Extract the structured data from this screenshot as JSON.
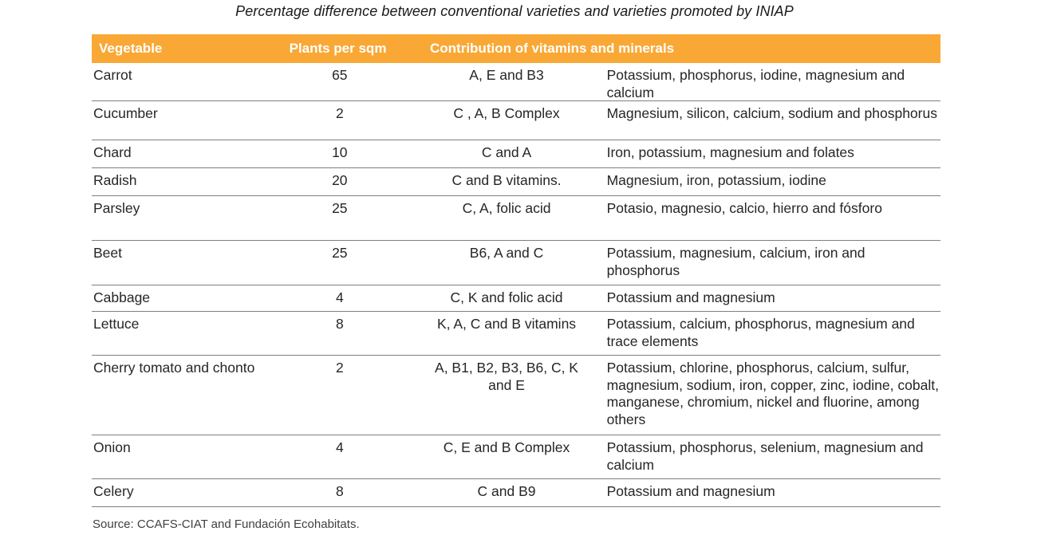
{
  "subtitle": "Percentage difference between conventional varieties and varieties promoted by INIAP",
  "table": {
    "headers": [
      "Vegetable",
      "Plants per sqm",
      "Contribution of vitamins  and minerals"
    ],
    "rows": [
      {
        "vegetable": "Carrot",
        "plants": "65",
        "vitamins": "A, E and B3",
        "minerals": "Potassium, phosphorus,  iodine, magnesium and calcium"
      },
      {
        "vegetable": "Cucumber",
        "plants": "2",
        "vitamins": "C , A, B Complex",
        "minerals": "Magnesium, silicon, calcium, sodium and phosphorus"
      },
      {
        "vegetable": "Chard",
        "plants": "10",
        "vitamins": "C and A",
        "minerals": "Iron, potassium,  magnesium and folates"
      },
      {
        "vegetable": "Radish",
        "plants": "20",
        "vitamins": "C and B vitamins.",
        "minerals": "Magnesium, iron, potassium,  iodine"
      },
      {
        "vegetable": "Parsley",
        "plants": "25",
        "vitamins": "C, A, folic acid",
        "minerals": "Potasio, magnesio, calcio, hierro and fósforo"
      },
      {
        "vegetable": "Beet",
        "plants": "25",
        "vitamins": "B6, A and C",
        "minerals": "Potassium, magnesium, calcium, iron and phosphorus"
      },
      {
        "vegetable": "Cabbage",
        "plants": "4",
        "vitamins": "C, K and folic acid",
        "minerals": "Potassium and magnesium"
      },
      {
        "vegetable": "Lettuce",
        "plants": "8",
        "vitamins": "K, A, C and B vitamins",
        "minerals": "Potassium, calcium, phosphorus,  magnesium and trace elements"
      },
      {
        "vegetable": "Cherry tomato and chonto",
        "plants": "2",
        "vitamins": "A, B1, B2, B3, B6, C, K and E",
        "minerals": "Potassium, chlorine, phosphorus,  calcium, sulfur, magnesium, sodium, iron, copper, zinc, iodine, cobalt, manganese, chromium, nickel and fluorine, among others"
      },
      {
        "vegetable": "Onion",
        "plants": "4",
        "vitamins": "C, E and B Complex",
        "minerals": "Potassium, phosphorus,  selenium, magnesium and calcium"
      },
      {
        "vegetable": "Celery",
        "plants": "8",
        "vitamins": "C and B9",
        "minerals": "Potassium and magnesium"
      }
    ]
  },
  "source": "Source: CCAFS-CIAT  and Fundación Ecohabitats."
}
